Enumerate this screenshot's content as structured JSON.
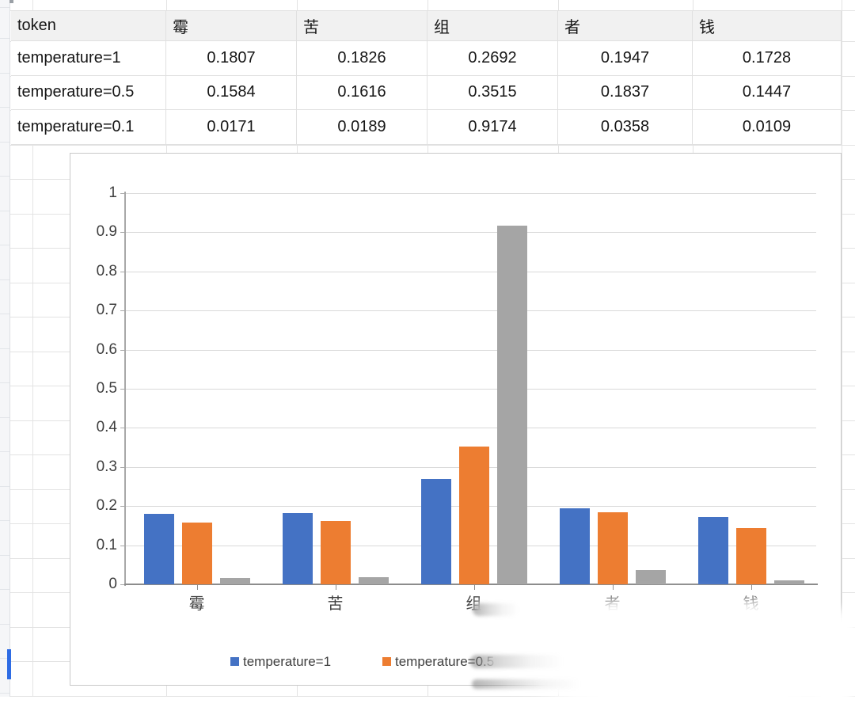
{
  "sheet": {
    "selection_color": "#2e6ce4",
    "grid_color": "#e3e3e3",
    "header_fill": "#f1f1f1",
    "strip_fill": "#f5f6f8"
  },
  "table": {
    "header": [
      "token",
      "霉",
      "苦",
      "组",
      "者",
      "钱"
    ],
    "rows": [
      {
        "label": "temperature=1",
        "values": [
          "0.1807",
          "0.1826",
          "0.2692",
          "0.1947",
          "0.1728"
        ]
      },
      {
        "label": "temperature=0.5",
        "values": [
          "0.1584",
          "0.1616",
          "0.3515",
          "0.1837",
          "0.1447"
        ]
      },
      {
        "label": "temperature=0.1",
        "values": [
          "0.0171",
          "0.0189",
          "0.9174",
          "0.0358",
          "0.0109"
        ]
      }
    ]
  },
  "chart_data": {
    "type": "bar",
    "categories": [
      "霉",
      "苦",
      "组",
      "者",
      "钱"
    ],
    "series": [
      {
        "name": "temperature=1",
        "color": "#4472C4",
        "values": [
          0.1807,
          0.1826,
          0.2692,
          0.1947,
          0.1728
        ]
      },
      {
        "name": "temperature=0.5",
        "color": "#ED7D31",
        "values": [
          0.1584,
          0.1616,
          0.3515,
          0.1837,
          0.1447
        ]
      },
      {
        "name": "temperature=0.1",
        "color": "#A5A5A5",
        "values": [
          0.0171,
          0.0189,
          0.9174,
          0.0358,
          0.0109
        ]
      }
    ],
    "ylim": [
      0,
      1
    ],
    "ytick_labels": [
      "0",
      "0.1",
      "0.2",
      "0.3",
      "0.4",
      "0.5",
      "0.6",
      "0.7",
      "0.8",
      "0.9",
      "1"
    ],
    "grid": true,
    "legend_position": "bottom"
  }
}
